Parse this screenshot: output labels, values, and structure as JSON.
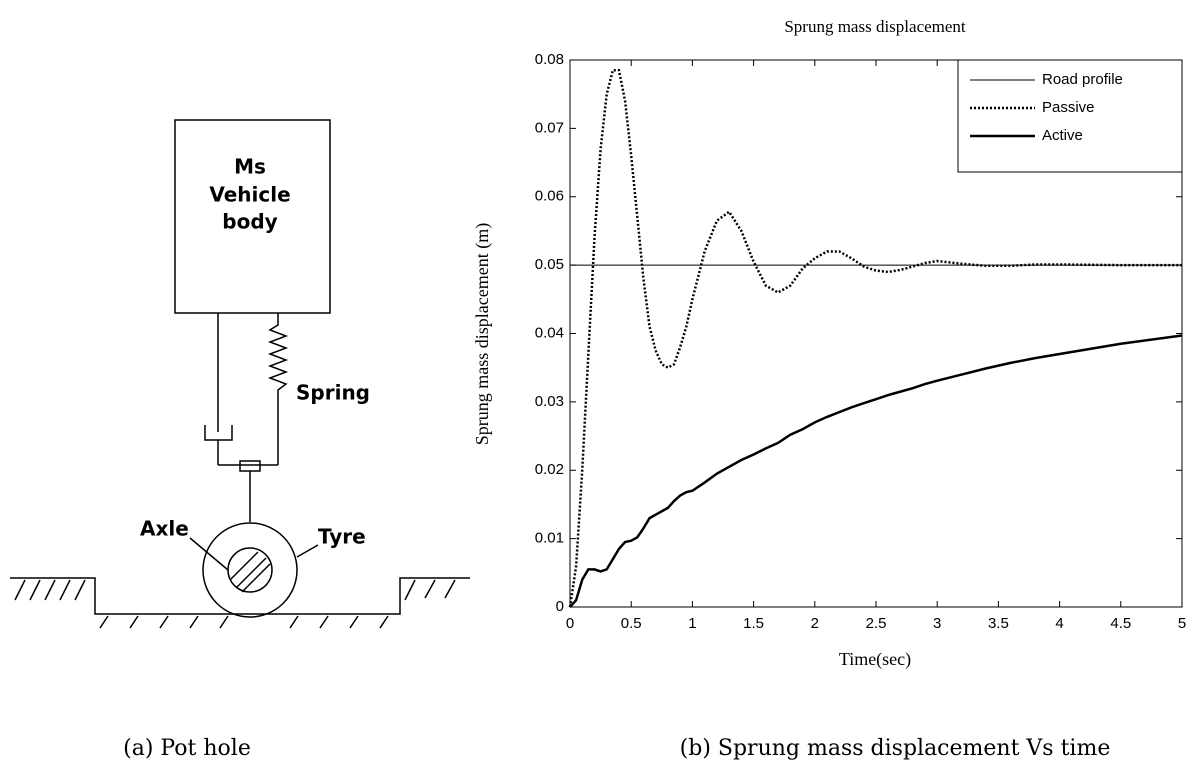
{
  "diagram": {
    "body_label": [
      "Ms",
      "Vehicle",
      "body"
    ],
    "spring": "Spring",
    "axle": "Axle",
    "tyre": "Tyre"
  },
  "captions": {
    "a": "(a) Pot hole",
    "b": "(b) Sprung mass displacement Vs time"
  },
  "chart_data": {
    "type": "line",
    "title": "Sprung mass displacement",
    "xlabel": "Time(sec)",
    "ylabel": "Sprung mass displacement (m)",
    "x": [
      0,
      0.05,
      0.1,
      0.15,
      0.2,
      0.25,
      0.3,
      0.35,
      0.4,
      0.45,
      0.5,
      0.55,
      0.6,
      0.65,
      0.7,
      0.75,
      0.8,
      0.85,
      0.9,
      0.95,
      1,
      1.1,
      1.2,
      1.3,
      1.4,
      1.5,
      1.6,
      1.7,
      1.8,
      1.9,
      2,
      2.1,
      2.2,
      2.3,
      2.4,
      2.5,
      2.6,
      2.7,
      2.8,
      2.9,
      3,
      3.2,
      3.4,
      3.6,
      3.8,
      4,
      4.5,
      5
    ],
    "series": [
      {
        "name": "Road profile",
        "color": "#000000",
        "style": "thin",
        "values": [
          0.05,
          0.05,
          0.05,
          0.05,
          0.05,
          0.05,
          0.05,
          0.05,
          0.05,
          0.05,
          0.05,
          0.05,
          0.05,
          0.05,
          0.05,
          0.05,
          0.05,
          0.05,
          0.05,
          0.05,
          0.05,
          0.05,
          0.05,
          0.05,
          0.05,
          0.05,
          0.05,
          0.05,
          0.05,
          0.05,
          0.05,
          0.05,
          0.05,
          0.05,
          0.05,
          0.05,
          0.05,
          0.05,
          0.05,
          0.05,
          0.05,
          0.05,
          0.05,
          0.05,
          0.05,
          0.05,
          0.05,
          0.05
        ]
      },
      {
        "name": "Passive",
        "color": "#000000",
        "style": "dotted",
        "values": [
          0,
          0.006,
          0.02,
          0.037,
          0.054,
          0.067,
          0.075,
          0.0785,
          0.0785,
          0.074,
          0.066,
          0.057,
          0.048,
          0.041,
          0.0375,
          0.0355,
          0.035,
          0.0355,
          0.038,
          0.041,
          0.045,
          0.052,
          0.0565,
          0.0578,
          0.055,
          0.0505,
          0.047,
          0.046,
          0.047,
          0.0495,
          0.051,
          0.052,
          0.052,
          0.051,
          0.0498,
          0.0492,
          0.049,
          0.0493,
          0.0498,
          0.0503,
          0.0506,
          0.0502,
          0.0499,
          0.0499,
          0.0501,
          0.0501,
          0.05,
          0.05
        ]
      },
      {
        "name": "Active",
        "color": "#000000",
        "style": "thick",
        "values": [
          0,
          0.001,
          0.004,
          0.0055,
          0.0055,
          0.0052,
          0.0055,
          0.007,
          0.0085,
          0.0095,
          0.0097,
          0.0102,
          0.0115,
          0.013,
          0.0135,
          0.014,
          0.0145,
          0.0155,
          0.0163,
          0.0168,
          0.017,
          0.0182,
          0.0195,
          0.0205,
          0.0215,
          0.0223,
          0.0232,
          0.024,
          0.0252,
          0.026,
          0.027,
          0.0278,
          0.0285,
          0.0292,
          0.0298,
          0.0304,
          0.031,
          0.0315,
          0.032,
          0.0326,
          0.0331,
          0.034,
          0.0349,
          0.0357,
          0.0364,
          0.037,
          0.0385,
          0.0397
        ]
      }
    ],
    "xlim": [
      0,
      5
    ],
    "ylim": [
      0,
      0.08
    ],
    "xticks": [
      0,
      0.5,
      1,
      1.5,
      2,
      2.5,
      3,
      3.5,
      4,
      4.5,
      5
    ],
    "yticks": [
      0,
      0.01,
      0.02,
      0.03,
      0.04,
      0.05,
      0.06,
      0.07,
      0.08
    ],
    "grid": false,
    "legend": "upper right"
  }
}
